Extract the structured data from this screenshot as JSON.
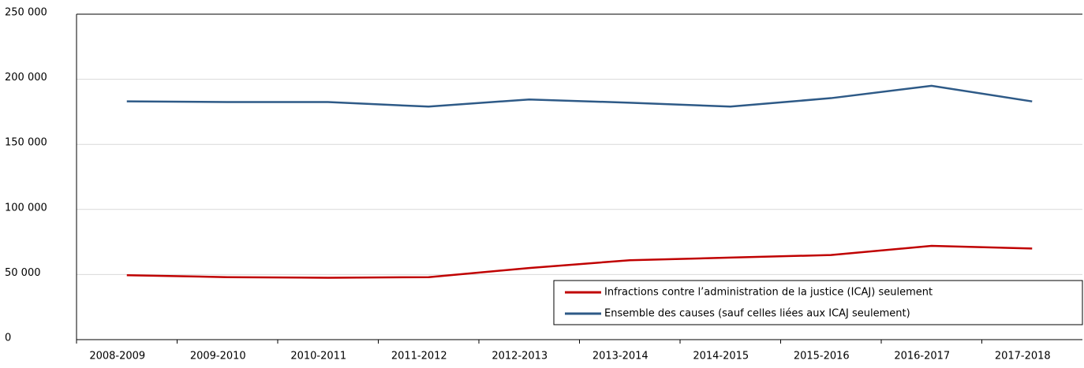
{
  "chart_data": {
    "type": "line",
    "categories": [
      "2008-2009",
      "2009-2010",
      "2010-2011",
      "2011-2012",
      "2012-2013",
      "2013-2014",
      "2014-2015",
      "2015-2016",
      "2016-2017",
      "2017-2018"
    ],
    "series": [
      {
        "name": "Infractions contre l’administration de la justice (ICAJ) seulement",
        "color": "#c00000",
        "values": [
          49500,
          48000,
          47500,
          48000,
          55000,
          61000,
          63000,
          65000,
          72000,
          70000
        ]
      },
      {
        "name": "Ensemble des causes (sauf celles liées aux ICAJ seulement)",
        "color": "#2e5a87",
        "values": [
          183000,
          182500,
          182500,
          179000,
          184500,
          182000,
          179000,
          185500,
          195000,
          183000
        ]
      }
    ],
    "ylim": [
      0,
      250000
    ],
    "yticks": [
      0,
      {
        "value": 50000,
        "label": "50 000"
      },
      {
        "value": 100000,
        "label": "100 000"
      },
      {
        "value": 150000,
        "label": "150 000"
      },
      {
        "value": 200000,
        "label": "200 000"
      },
      {
        "value": 250000,
        "label": "250 000"
      }
    ],
    "grid": true,
    "legend": "lower right"
  }
}
